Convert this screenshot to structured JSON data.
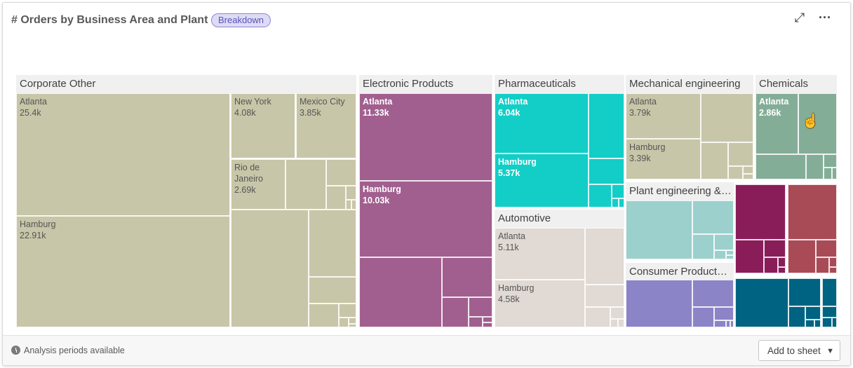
{
  "header": {
    "title": "# Orders by Business Area and Plant",
    "badge": "Breakdown",
    "expand_icon": "expand-icon",
    "more_icon": "more-horizontal-icon"
  },
  "footer": {
    "analysis_text": "Analysis periods available",
    "add_to_sheet": "Add to sheet",
    "clock_icon": "clock-icon"
  },
  "chart_data": {
    "type": "treemap",
    "title": "# Orders by Business Area and Plant",
    "groups": [
      {
        "name": "Corporate Other",
        "color": "#c8c6a8",
        "leaves": [
          {
            "name": "Atlanta",
            "value": "25.4k"
          },
          {
            "name": "Hamburg",
            "value": "22.91k"
          },
          {
            "name": "New York",
            "value": "4.08k"
          },
          {
            "name": "Mexico City",
            "value": "3.85k"
          },
          {
            "name": "Rio de Janeiro",
            "value": "2.69k"
          }
        ]
      },
      {
        "name": "Electronic Products",
        "color": "#a15f8f",
        "leaves": [
          {
            "name": "Atlanta",
            "value": "11.33k"
          },
          {
            "name": "Hamburg",
            "value": "10.03k"
          }
        ]
      },
      {
        "name": "Pharmaceuticals",
        "color": "#12cec7",
        "leaves": [
          {
            "name": "Atlanta",
            "value": "6.04k"
          },
          {
            "name": "Hamburg",
            "value": "5.37k"
          }
        ]
      },
      {
        "name": "Automotive",
        "color": "#e0d9d4",
        "leaves": [
          {
            "name": "Atlanta",
            "value": "5.11k"
          },
          {
            "name": "Hamburg",
            "value": "4.58k"
          }
        ]
      },
      {
        "name": "Mechanical engineering",
        "color": "#c8c6a8",
        "leaves": [
          {
            "name": "Atlanta",
            "value": "3.79k"
          },
          {
            "name": "Hamburg",
            "value": "3.39k"
          }
        ]
      },
      {
        "name": "Chemicals",
        "color": "#84ad98",
        "leaves": [
          {
            "name": "Atlanta",
            "value": "2.86k"
          }
        ]
      },
      {
        "name": "Plant engineering &…",
        "color": "#9bd0cd",
        "leaves": []
      },
      {
        "name": "Consumer Product…",
        "color": "#8b84c7",
        "leaves": []
      },
      {
        "name": "",
        "color": "#891d5a",
        "leaves": []
      },
      {
        "name": "",
        "color": "#a94b56",
        "leaves": []
      },
      {
        "name": "",
        "color": "#006381",
        "leaves": []
      },
      {
        "name": "",
        "color": "#006381",
        "leaves": []
      }
    ]
  }
}
